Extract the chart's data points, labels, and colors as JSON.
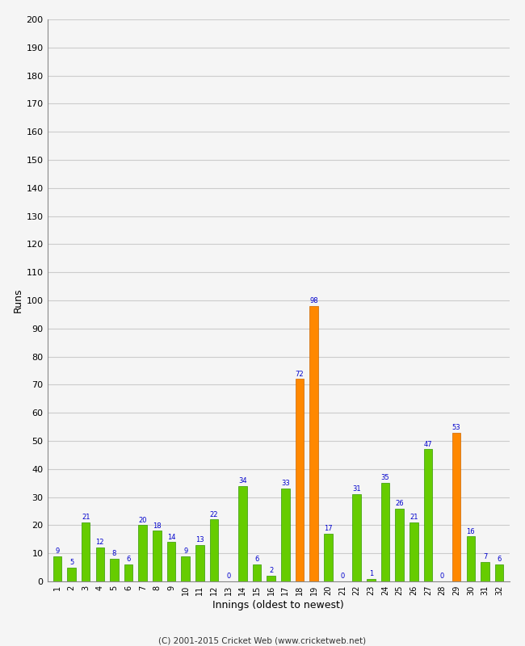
{
  "xlabel": "Innings (oldest to newest)",
  "ylabel": "Runs",
  "ylim": [
    0,
    200
  ],
  "yticks": [
    0,
    10,
    20,
    30,
    40,
    50,
    60,
    70,
    80,
    90,
    100,
    110,
    120,
    130,
    140,
    150,
    160,
    170,
    180,
    190,
    200
  ],
  "innings": [
    1,
    2,
    3,
    4,
    5,
    6,
    7,
    8,
    9,
    10,
    11,
    12,
    13,
    14,
    15,
    16,
    17,
    18,
    19,
    20,
    21,
    22,
    23,
    24,
    25,
    26,
    27,
    28,
    29,
    30,
    31,
    32
  ],
  "values": [
    9,
    5,
    21,
    12,
    8,
    6,
    20,
    18,
    14,
    9,
    13,
    22,
    0,
    34,
    6,
    2,
    33,
    72,
    98,
    17,
    0,
    31,
    1,
    35,
    26,
    21,
    47,
    0,
    53,
    16,
    7,
    6
  ],
  "colors": [
    "#66cc00",
    "#66cc00",
    "#66cc00",
    "#66cc00",
    "#66cc00",
    "#66cc00",
    "#66cc00",
    "#66cc00",
    "#66cc00",
    "#66cc00",
    "#66cc00",
    "#66cc00",
    "#66cc00",
    "#66cc00",
    "#66cc00",
    "#66cc00",
    "#66cc00",
    "#ff8800",
    "#ff8800",
    "#66cc00",
    "#66cc00",
    "#66cc00",
    "#66cc00",
    "#66cc00",
    "#66cc00",
    "#66cc00",
    "#66cc00",
    "#66cc00",
    "#ff8800",
    "#66cc00",
    "#66cc00",
    "#66cc00"
  ],
  "label_color": "#0000cc",
  "bar_edge_color": "#339900",
  "orange_edge_color": "#cc6600",
  "background_color": "#f5f5f5",
  "footer": "(C) 2001-2015 Cricket Web (www.cricketweb.net)"
}
